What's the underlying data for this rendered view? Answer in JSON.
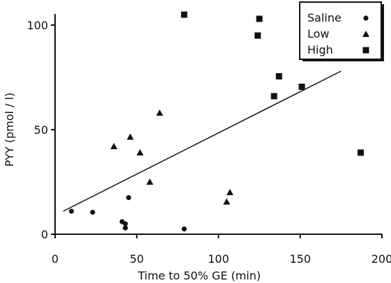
{
  "chart_data": {
    "type": "scatter",
    "title": "",
    "xlabel": "Time to 50% GE (min)",
    "ylabel": "PYY  (pmol / l)",
    "xlim": [
      0,
      200
    ],
    "ylim": [
      0,
      100
    ],
    "xticks": [
      0,
      50,
      100,
      150,
      200
    ],
    "yticks": [
      0,
      50,
      100
    ],
    "grid": false,
    "legend_position": "top-right",
    "series": [
      {
        "name": "Saline",
        "marker": "circle",
        "points": [
          {
            "x": 10,
            "y": 11
          },
          {
            "x": 23,
            "y": 10.5
          },
          {
            "x": 41,
            "y": 6
          },
          {
            "x": 43,
            "y": 5
          },
          {
            "x": 43,
            "y": 3
          },
          {
            "x": 45,
            "y": 17.5
          },
          {
            "x": 79,
            "y": 2.5
          }
        ]
      },
      {
        "name": "Low",
        "marker": "triangle",
        "points": [
          {
            "x": 36,
            "y": 42
          },
          {
            "x": 46,
            "y": 46.5
          },
          {
            "x": 52,
            "y": 39
          },
          {
            "x": 58,
            "y": 25
          },
          {
            "x": 64,
            "y": 58
          },
          {
            "x": 105,
            "y": 15.5
          },
          {
            "x": 107,
            "y": 20
          }
        ]
      },
      {
        "name": "High",
        "marker": "square",
        "points": [
          {
            "x": 79,
            "y": 105
          },
          {
            "x": 124,
            "y": 95
          },
          {
            "x": 125,
            "y": 103
          },
          {
            "x": 134,
            "y": 66
          },
          {
            "x": 137,
            "y": 75.5
          },
          {
            "x": 151,
            "y": 70.5
          },
          {
            "x": 187,
            "y": 39
          }
        ]
      }
    ],
    "regression_line": {
      "x": [
        5,
        175
      ],
      "y": [
        11,
        78
      ]
    },
    "legend": [
      "Saline",
      "Low",
      "High"
    ]
  }
}
